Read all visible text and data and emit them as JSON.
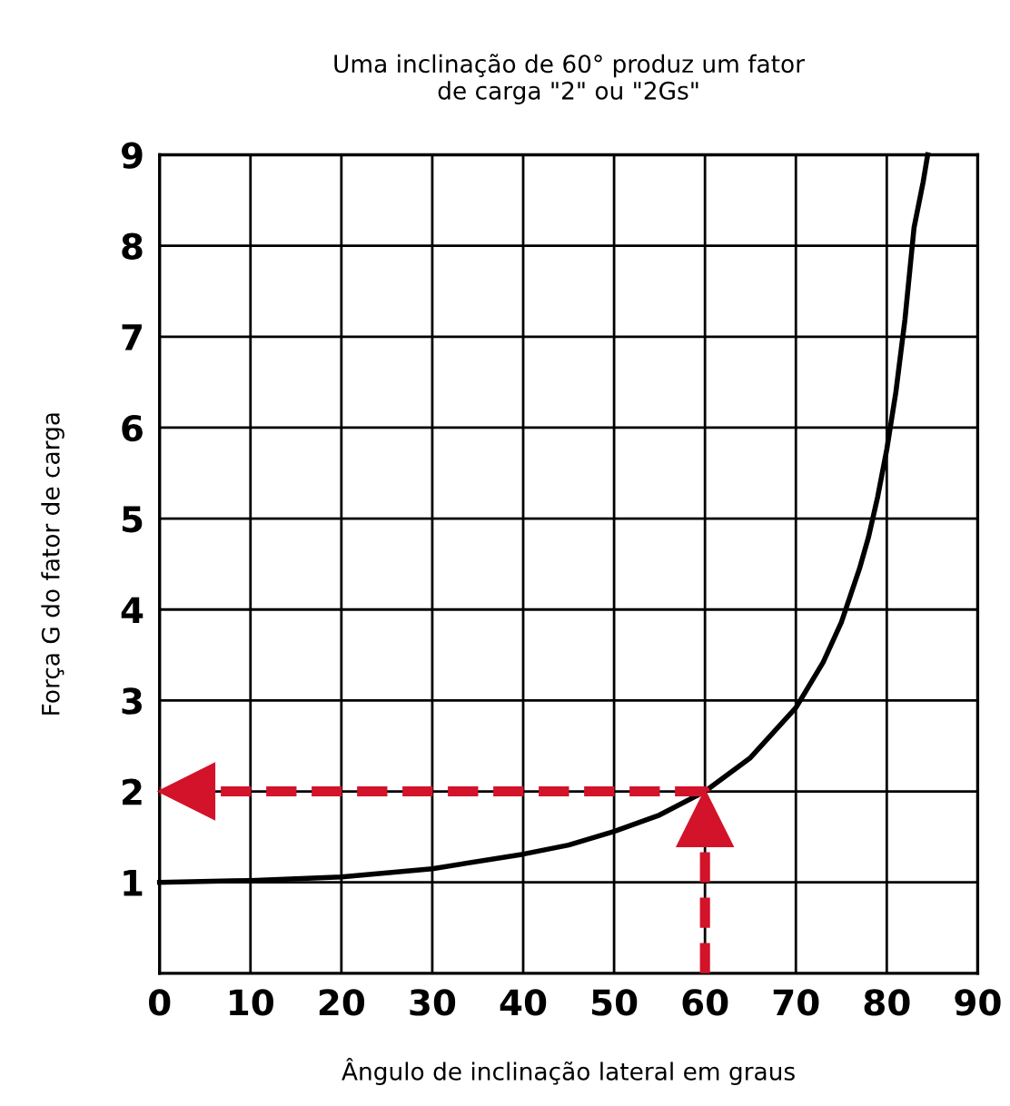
{
  "chart_data": {
    "type": "line",
    "title": "Uma inclinação de 60° produz um fator\nde carga \"2\" ou \"2Gs\"",
    "xlabel": "Ângulo de inclinação lateral em graus",
    "ylabel": "Força G do fator de carga",
    "xlim": [
      0,
      90
    ],
    "xticks": [
      0,
      10,
      20,
      30,
      40,
      50,
      60,
      70,
      80,
      90
    ],
    "ylim": [
      0,
      9
    ],
    "yticks": [
      1,
      2,
      3,
      4,
      5,
      6,
      7,
      8,
      9
    ],
    "grid": true,
    "series": [
      {
        "color": "#000000",
        "line_style": "solid",
        "x": [
          0,
          10,
          20,
          30,
          40,
          45,
          50,
          55,
          60,
          65,
          70,
          73,
          75,
          77,
          78,
          79,
          80,
          81,
          82,
          83,
          84,
          84.5
        ],
        "values": [
          1,
          1.02,
          1.06,
          1.15,
          1.31,
          1.41,
          1.56,
          1.74,
          2,
          2.37,
          2.92,
          3.42,
          3.86,
          4.45,
          4.8,
          5.24,
          5.76,
          6.39,
          7.19,
          8.2,
          8.7,
          9
        ]
      },
      {
        "color": "#d3132a",
        "line_style": "dashed",
        "x": [
          60,
          60,
          0
        ],
        "values": [
          0,
          2,
          2
        ]
      }
    ]
  }
}
